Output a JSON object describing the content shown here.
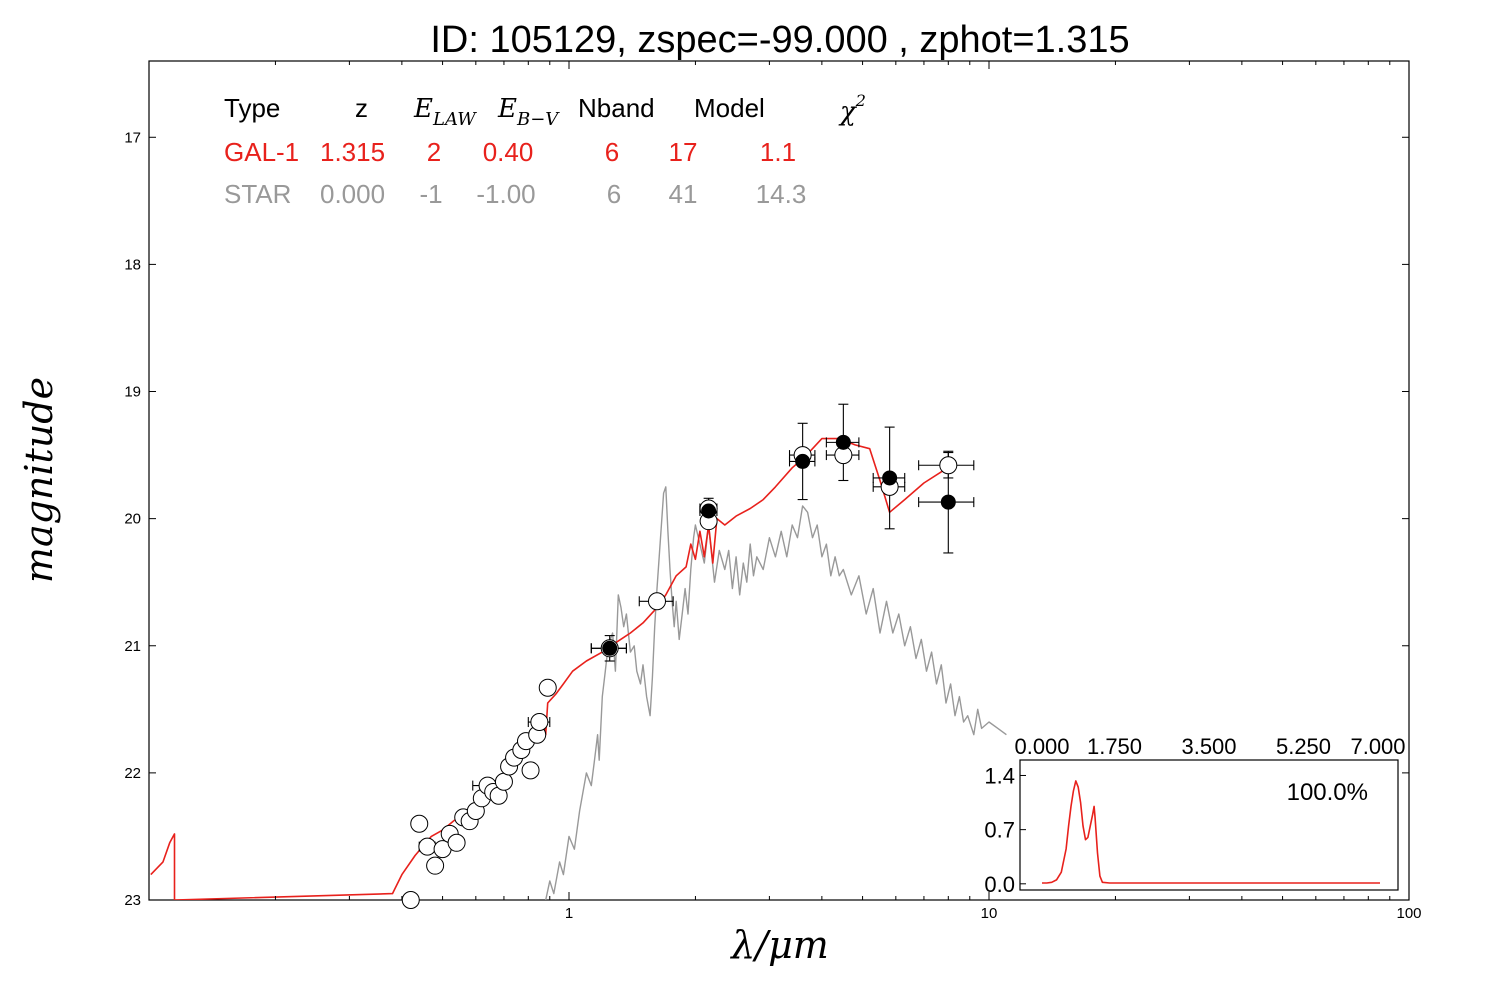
{
  "title": "ID:  105129, zspec=-99.000 , zphot=1.315",
  "colors": {
    "galaxy": "#e8211c",
    "star": "#999999",
    "point": "#000000"
  },
  "chart_data": {
    "type": "scatter",
    "xlabel": "λ/μm",
    "ylabel": "magnitude",
    "x_scale": "log",
    "xlim": [
      0.1,
      100
    ],
    "ylim": [
      23,
      16.4
    ],
    "y_inverted": true,
    "x_tick_labels": [
      "1",
      "10",
      "100"
    ],
    "x_tick_values": [
      1,
      10,
      100
    ],
    "y_tick_values": [
      17,
      18,
      19,
      20,
      21,
      22,
      23
    ],
    "y_tick_labels": [
      "17",
      "18",
      "19",
      "20",
      "21",
      "22",
      "23"
    ],
    "summary_table": {
      "headers": {
        "type": "Type",
        "z": "z",
        "elaw": "E",
        "elaw_sub": "LAW",
        "ebv": "E",
        "ebv_sub": "B−V",
        "nband": "Nband",
        "model": "Model",
        "chi2": "χ",
        "chi2_sup": "2"
      },
      "rows": [
        {
          "key": "gal",
          "type": "GAL-1",
          "z": "1.315",
          "elaw": "2",
          "ebv": "0.40",
          "nband": "6",
          "model": "17",
          "chi2": "1.1"
        },
        {
          "key": "star",
          "type": "STAR",
          "z": "0.000",
          "elaw": "-1",
          "ebv": "-1.00",
          "nband": "6",
          "model": "41",
          "chi2": "14.3"
        }
      ]
    },
    "series": [
      {
        "kind": "galaxy_template",
        "points": [
          [
            0.101,
            22.8
          ],
          [
            0.108,
            22.7
          ],
          [
            0.112,
            22.55
          ],
          [
            0.115,
            22.48
          ],
          [
            0.115,
            23.0
          ],
          [
            0.38,
            22.95
          ],
          [
            0.4,
            22.8
          ],
          [
            0.43,
            22.65
          ],
          [
            0.47,
            22.5
          ],
          [
            0.5,
            22.45
          ],
          [
            0.53,
            22.38
          ],
          [
            0.57,
            22.3
          ],
          [
            0.62,
            22.2
          ],
          [
            0.68,
            22.05
          ],
          [
            0.73,
            21.95
          ],
          [
            0.78,
            21.82
          ],
          [
            0.82,
            21.7
          ],
          [
            0.85,
            21.58
          ],
          [
            0.87,
            21.55
          ],
          [
            0.88,
            21.7
          ],
          [
            0.89,
            21.45
          ],
          [
            0.93,
            21.38
          ],
          [
            0.97,
            21.3
          ],
          [
            1.02,
            21.2
          ],
          [
            1.1,
            21.12
          ],
          [
            1.2,
            21.05
          ],
          [
            1.3,
            20.97
          ],
          [
            1.4,
            20.9
          ],
          [
            1.5,
            20.82
          ],
          [
            1.6,
            20.72
          ],
          [
            1.7,
            20.6
          ],
          [
            1.8,
            20.45
          ],
          [
            1.9,
            20.38
          ],
          [
            1.95,
            20.2
          ],
          [
            2.0,
            20.32
          ],
          [
            2.05,
            20.1
          ],
          [
            2.1,
            20.3
          ],
          [
            2.15,
            20.05
          ],
          [
            2.2,
            20.35
          ],
          [
            2.25,
            20.0
          ],
          [
            2.35,
            20.05
          ],
          [
            2.5,
            19.98
          ],
          [
            2.7,
            19.92
          ],
          [
            2.9,
            19.85
          ],
          [
            3.1,
            19.75
          ],
          [
            3.4,
            19.6
          ],
          [
            3.6,
            19.53
          ],
          [
            3.8,
            19.45
          ],
          [
            4.0,
            19.37
          ],
          [
            4.4,
            19.37
          ],
          [
            4.8,
            19.42
          ],
          [
            5.2,
            19.45
          ],
          [
            5.5,
            19.7
          ],
          [
            5.8,
            19.95
          ],
          [
            6.3,
            19.85
          ],
          [
            7.0,
            19.72
          ],
          [
            7.8,
            19.62
          ]
        ]
      },
      {
        "kind": "star_template",
        "points": [
          [
            0.88,
            23.0
          ],
          [
            0.9,
            22.85
          ],
          [
            0.92,
            22.95
          ],
          [
            0.95,
            22.7
          ],
          [
            0.97,
            22.8
          ],
          [
            1.0,
            22.5
          ],
          [
            1.03,
            22.6
          ],
          [
            1.06,
            22.3
          ],
          [
            1.1,
            22.0
          ],
          [
            1.13,
            22.1
          ],
          [
            1.15,
            21.9
          ],
          [
            1.17,
            21.7
          ],
          [
            1.18,
            21.9
          ],
          [
            1.2,
            21.4
          ],
          [
            1.22,
            21.2
          ],
          [
            1.24,
            21.0
          ],
          [
            1.27,
            20.9
          ],
          [
            1.29,
            21.2
          ],
          [
            1.31,
            20.6
          ],
          [
            1.33,
            20.7
          ],
          [
            1.35,
            20.85
          ],
          [
            1.37,
            20.75
          ],
          [
            1.4,
            21.05
          ],
          [
            1.43,
            21.0
          ],
          [
            1.45,
            21.2
          ],
          [
            1.48,
            21.3
          ],
          [
            1.5,
            21.15
          ],
          [
            1.53,
            21.4
          ],
          [
            1.56,
            21.55
          ],
          [
            1.58,
            21.25
          ],
          [
            1.6,
            20.85
          ],
          [
            1.62,
            20.55
          ],
          [
            1.64,
            20.3
          ],
          [
            1.66,
            20.05
          ],
          [
            1.68,
            19.8
          ],
          [
            1.7,
            19.75
          ],
          [
            1.72,
            20.1
          ],
          [
            1.74,
            20.4
          ],
          [
            1.76,
            20.65
          ],
          [
            1.78,
            20.85
          ],
          [
            1.8,
            20.65
          ],
          [
            1.83,
            20.95
          ],
          [
            1.86,
            20.75
          ],
          [
            1.89,
            20.55
          ],
          [
            1.92,
            20.75
          ],
          [
            1.95,
            20.4
          ],
          [
            1.98,
            20.15
          ],
          [
            2.0,
            20.05
          ],
          [
            2.05,
            20.2
          ],
          [
            2.1,
            20.35
          ],
          [
            2.15,
            20.05
          ],
          [
            2.18,
            20.25
          ],
          [
            2.22,
            20.5
          ],
          [
            2.28,
            20.25
          ],
          [
            2.35,
            20.4
          ],
          [
            2.4,
            20.25
          ],
          [
            2.45,
            20.55
          ],
          [
            2.5,
            20.3
          ],
          [
            2.55,
            20.6
          ],
          [
            2.6,
            20.35
          ],
          [
            2.65,
            20.5
          ],
          [
            2.7,
            20.2
          ],
          [
            2.75,
            20.45
          ],
          [
            2.8,
            20.3
          ],
          [
            2.9,
            20.4
          ],
          [
            3.0,
            20.15
          ],
          [
            3.1,
            20.3
          ],
          [
            3.2,
            20.1
          ],
          [
            3.3,
            20.3
          ],
          [
            3.4,
            20.05
          ],
          [
            3.5,
            20.15
          ],
          [
            3.6,
            19.9
          ],
          [
            3.7,
            19.95
          ],
          [
            3.8,
            20.15
          ],
          [
            3.9,
            20.05
          ],
          [
            4.0,
            20.3
          ],
          [
            4.1,
            20.2
          ],
          [
            4.2,
            20.45
          ],
          [
            4.3,
            20.3
          ],
          [
            4.4,
            20.45
          ],
          [
            4.5,
            20.4
          ],
          [
            4.7,
            20.6
          ],
          [
            4.9,
            20.45
          ],
          [
            5.1,
            20.75
          ],
          [
            5.3,
            20.55
          ],
          [
            5.5,
            20.9
          ],
          [
            5.7,
            20.65
          ],
          [
            5.9,
            20.9
          ],
          [
            6.1,
            20.75
          ],
          [
            6.3,
            21.0
          ],
          [
            6.5,
            20.85
          ],
          [
            6.7,
            21.1
          ],
          [
            6.9,
            20.95
          ],
          [
            7.1,
            21.2
          ],
          [
            7.3,
            21.05
          ],
          [
            7.5,
            21.3
          ],
          [
            7.7,
            21.15
          ],
          [
            7.9,
            21.45
          ],
          [
            8.1,
            21.3
          ],
          [
            8.3,
            21.55
          ],
          [
            8.5,
            21.4
          ],
          [
            8.7,
            21.6
          ],
          [
            8.9,
            21.55
          ],
          [
            9.2,
            21.7
          ],
          [
            9.4,
            21.5
          ],
          [
            9.6,
            21.65
          ],
          [
            10.0,
            21.6
          ],
          [
            10.5,
            21.65
          ],
          [
            11.0,
            21.7
          ]
        ]
      },
      {
        "kind": "observed_open",
        "points": [
          [
            0.42,
            23.0,
            0,
            0
          ],
          [
            0.44,
            22.4,
            0,
            0
          ],
          [
            0.46,
            22.58,
            0.02,
            0
          ],
          [
            0.48,
            22.73,
            0,
            0
          ],
          [
            0.5,
            22.6,
            0,
            0
          ],
          [
            0.52,
            22.48,
            0,
            0
          ],
          [
            0.54,
            22.55,
            0,
            0
          ],
          [
            0.56,
            22.35,
            0,
            0
          ],
          [
            0.58,
            22.38,
            0,
            0
          ],
          [
            0.6,
            22.3,
            0,
            0
          ],
          [
            0.62,
            22.2,
            0,
            0
          ],
          [
            0.64,
            22.1,
            0.05,
            0
          ],
          [
            0.66,
            22.15,
            0,
            0
          ],
          [
            0.68,
            22.18,
            0,
            0
          ],
          [
            0.7,
            22.07,
            0,
            0
          ],
          [
            0.72,
            21.95,
            0,
            0
          ],
          [
            0.74,
            21.88,
            0,
            0
          ],
          [
            0.77,
            21.82,
            0,
            0
          ],
          [
            0.79,
            21.75,
            0,
            0
          ],
          [
            0.81,
            21.98,
            0,
            0
          ],
          [
            0.84,
            21.7,
            0,
            0
          ],
          [
            0.85,
            21.6,
            0.05,
            0
          ],
          [
            0.89,
            21.33,
            0,
            0
          ],
          [
            1.25,
            21.02,
            0.12,
            0.05
          ],
          [
            1.62,
            20.65,
            0.15,
            0
          ],
          [
            2.15,
            19.92,
            0.1,
            0
          ],
          [
            2.15,
            20.02,
            0,
            0
          ],
          [
            3.6,
            19.5,
            0.25,
            0
          ],
          [
            4.5,
            19.5,
            0.4,
            0
          ],
          [
            5.8,
            19.75,
            0.5,
            0
          ],
          [
            8.0,
            19.58,
            1.2,
            0.1
          ]
        ]
      },
      {
        "kind": "observed_filled",
        "points": [
          [
            1.25,
            21.02,
            0.12,
            0.1
          ],
          [
            2.15,
            19.94,
            0.1,
            0.1
          ],
          [
            3.6,
            19.55,
            0.25,
            0.3
          ],
          [
            4.5,
            19.4,
            0.4,
            0.3
          ],
          [
            5.8,
            19.68,
            0.5,
            0.4
          ],
          [
            8.0,
            19.87,
            1.2,
            0.4
          ]
        ]
      }
    ],
    "inset": {
      "type": "line",
      "x_tick_labels": [
        "0.000",
        "1.750",
        "3.500",
        "5.250",
        "7.000"
      ],
      "x_tick_values": [
        0,
        1.75,
        3.5,
        5.25,
        7.0
      ],
      "y_tick_labels": [
        "0.0",
        "0.7",
        "1.4"
      ],
      "y_tick_values": [
        0,
        0.7,
        1.4
      ],
      "xlim": [
        0,
        7.0
      ],
      "ylim": [
        -0.08,
        1.6
      ],
      "annotation": "100.0%",
      "points": [
        [
          0.0,
          0.01
        ],
        [
          0.1,
          0.01
        ],
        [
          0.2,
          0.02
        ],
        [
          0.3,
          0.05
        ],
        [
          0.4,
          0.15
        ],
        [
          0.5,
          0.45
        ],
        [
          0.55,
          0.75
        ],
        [
          0.6,
          1.0
        ],
        [
          0.65,
          1.2
        ],
        [
          0.7,
          1.33
        ],
        [
          0.75,
          1.25
        ],
        [
          0.8,
          1.05
        ],
        [
          0.85,
          0.75
        ],
        [
          0.9,
          0.57
        ],
        [
          0.95,
          0.6
        ],
        [
          1.0,
          0.75
        ],
        [
          1.05,
          0.9
        ],
        [
          1.08,
          1.0
        ],
        [
          1.1,
          0.85
        ],
        [
          1.15,
          0.4
        ],
        [
          1.2,
          0.1
        ],
        [
          1.25,
          0.02
        ],
        [
          1.4,
          0.01
        ],
        [
          2.0,
          0.01
        ],
        [
          3.0,
          0.01
        ],
        [
          4.0,
          0.01
        ],
        [
          5.0,
          0.01
        ],
        [
          6.0,
          0.01
        ],
        [
          7.0,
          0.01
        ]
      ]
    }
  }
}
